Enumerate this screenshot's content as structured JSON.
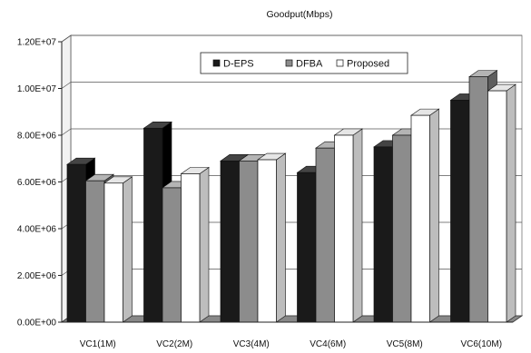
{
  "chart_data": {
    "type": "bar",
    "title": "Goodput(Mbps)",
    "xlabel": "",
    "ylabel": "",
    "categories": [
      "VC1(1M)",
      "VC2(2M)",
      "VC3(4M)",
      "VC4(6M)",
      "VC5(8M)",
      "VC6(10M)"
    ],
    "series": [
      {
        "name": "D-EPS",
        "values": [
          6750000,
          8300000,
          6900000,
          6400000,
          7500000,
          9500000
        ],
        "color": "#1a1a1a",
        "side": "#000000",
        "top": "#444444"
      },
      {
        "name": "DFBA",
        "values": [
          6050000,
          5750000,
          6900000,
          7450000,
          8000000,
          10500000
        ],
        "color": "#8c8c8c",
        "side": "#5e5e5e",
        "top": "#b4b4b4"
      },
      {
        "name": "Proposed",
        "values": [
          5950000,
          6350000,
          6950000,
          8000000,
          8850000,
          9900000
        ],
        "color": "#ffffff",
        "side": "#bdbdbd",
        "top": "#e6e6e6"
      }
    ],
    "ylim": [
      0,
      12000000
    ],
    "yticks": [
      "0.00E+00",
      "2.00E+06",
      "4.00E+06",
      "6.00E+06",
      "8.00E+06",
      "1.00E+07",
      "1.20E+07"
    ],
    "grid": true,
    "legend": "top-center"
  }
}
